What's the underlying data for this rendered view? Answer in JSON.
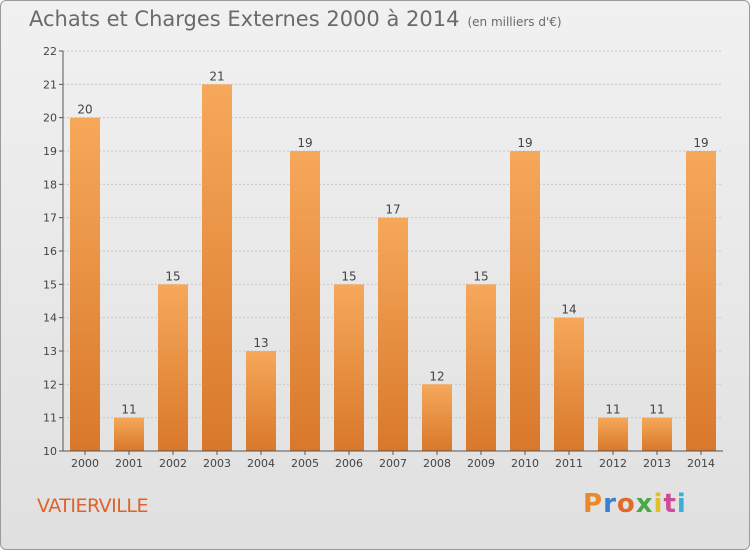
{
  "title": "Achats et Charges Externes 2000 à 2014",
  "subtitle": "(en milliers d'€)",
  "city": "VATIERVILLE",
  "logo": {
    "text": "Proxiti"
  },
  "colors": {
    "bar_top": "#f6a85a",
    "bar_bottom": "#d9782a",
    "grid": "#c8c8c8",
    "axis": "#555555",
    "title": "#6a6a6a",
    "city": "#e0622a"
  },
  "chart_data": {
    "type": "bar",
    "categories": [
      "2000",
      "2001",
      "2002",
      "2003",
      "2004",
      "2005",
      "2006",
      "2007",
      "2008",
      "2009",
      "2010",
      "2011",
      "2012",
      "2013",
      "2014"
    ],
    "values": [
      20,
      11,
      15,
      21,
      13,
      19,
      15,
      17,
      12,
      15,
      19,
      14,
      11,
      11,
      19
    ],
    "ylim": [
      10,
      22
    ],
    "yticks": [
      10,
      11,
      12,
      13,
      14,
      15,
      16,
      17,
      18,
      19,
      20,
      21,
      22
    ],
    "grid": true
  }
}
